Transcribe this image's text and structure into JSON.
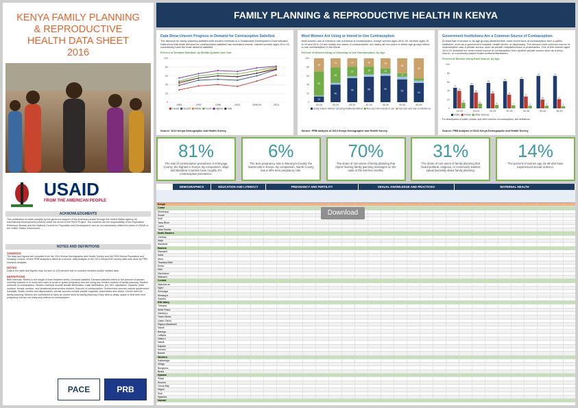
{
  "sidebar": {
    "title": "KENYA FAMILY PLANNING & REPRODUCTIVE HEALTH DATA SHEET 2016",
    "usaid": "USAID",
    "usaid_tagline": "FROM THE AMERICAN PEOPLE",
    "acknowledgments_heading": "ACKNOWLEDGMENTS",
    "acknowledgments_text": "This publication is made possible by the generous support of the American people through the United States Agency for International Development (USAID) under the terms of the PACE Project. The contents are the responsibility of the Population Reference Bureau and the National Council for Population and Development, and do not necessarily reflect the views of USAID or the United States Government.",
    "notes_heading": "NOTES AND DEFINITIONS",
    "sections": [
      {
        "heading": "SOURCES",
        "text": "The data and figures are compiled from the 2014 Kenya Demographic and Health Survey and the 2009 Kenya Population and Housing Census. Where PRB analysis is listed as a source, data analysis of the 2014 Kenya DHS survey data was done by PRB research analysts."
      },
      {
        "heading": "NOTES",
        "text": "Data in the table and figures may not sum to 100 percent due to rounded numbers and/or omitted data."
      },
      {
        "heading": "DEFINITIONS",
        "text": "Birth intervals: Refers to the length of time between births. Demand satisfied: Demand satisfied refers to the percent of women currently married or in union who want to avoid or space pregnancy and are using any modern method of family planning. Modern methods of contraception: Modern methods include female sterilization, male sterilization, pill, IUD, injectables, implants, male condom, female condom, and lactational amenorrhea method. Sources of contraception: Government sources include government hospitals, health centres and dispensaries; private sources include private hospitals, pharmacies and clinics. Unmet need for family planning: Women are considered to have an unmet need for family planning if they wish to delay, space or limit their next pregnancy but are not using any method of contraception."
      }
    ],
    "logos": [
      "PACE",
      "PRB"
    ]
  },
  "header": {
    "title": "FAMILY PLANNING & REPRODUCTIVE HEALTH IN KENYA"
  },
  "panels": [
    {
      "heading": "Data Show Uneven Progress in Demand for Contraceptive Satisfied.",
      "text": "The demand for family planning satisfied with modern methods is a Sustainable Development Goal indicator. Data show that while demand for contraception satisfied has increased overall, married women ages 15 to 19 consistently have the least demand satisfied.",
      "chart_data": {
        "type": "line",
        "title": "Percent of Demand Satisfied, by Wealth Quintile and Year",
        "categories": [
          "1989",
          "1993",
          "1998",
          "2003",
          "2008-09",
          "2014"
        ],
        "series": [
          {
            "name": "Lowest",
            "color": "#d7312e",
            "values": [
              28,
              37,
              40,
              36,
              48,
              62
            ]
          },
          {
            "name": "Second",
            "color": "#2f5597",
            "values": [
              38,
              50,
              52,
              50,
              60,
              74
            ]
          },
          {
            "name": "Middle",
            "color": "#ed7d31",
            "values": [
              42,
              55,
              60,
              58,
              66,
              78
            ]
          },
          {
            "name": "Fourth",
            "color": "#70ad47",
            "values": [
              48,
              60,
              65,
              64,
              72,
              80
            ]
          },
          {
            "name": "Highest",
            "color": "#7030a0",
            "values": [
              55,
              65,
              72,
              70,
              78,
              82
            ]
          },
          {
            "name": "Total",
            "color": "#333333",
            "values": [
              45,
              55,
              60,
              58,
              66,
              75
            ]
          }
        ],
        "ylim": [
          0,
          100
        ],
        "yticks": [
          0,
          20,
          40,
          60,
          80,
          100
        ],
        "grid": true
      },
      "source": "Source: 2014 Kenya Demographic and Health Survey."
    },
    {
      "heading": "Most Women Are Using or Intend to Use Contraception.",
      "text": "Most women use or intend to use a method of contraception, except women ages 45 to 49. Women ages 15 to 19 and 20 to 24 are mostly non-users of contraception, but nearly all non-users in these age groups intend to use contraception in the future.",
      "chart_data": {
        "type": "stacked-bar",
        "title": "Percent of Women Using or Intending to Use Contraception, by Age",
        "categories": [
          "15-19",
          "20-24",
          "25-29",
          "30-34",
          "35-39",
          "40-44",
          "45-49"
        ],
        "series": [
          {
            "name": "Using modern method",
            "color": "#1f3b6e",
            "values": [
              13,
              40,
              55,
              58,
              60,
              52,
              44
            ]
          },
          {
            "name": "Using traditional method",
            "color": "#9dc3e6",
            "values": [
              2,
              4,
              4,
              5,
              5,
              6,
              5
            ]
          },
          {
            "name": "Non-user who intends to use",
            "color": "#70ad47",
            "values": [
              55,
              35,
              22,
              18,
              12,
              8,
              5
            ]
          },
          {
            "name": "Non-user who has no intention to use",
            "color": "#c9a36b",
            "values": [
              30,
              21,
              19,
              19,
              23,
              34,
              46
            ]
          }
        ],
        "ylim": [
          0,
          100
        ],
        "yticks": [
          0,
          20,
          40,
          60,
          80,
          100
        ]
      },
      "source": "Source: PRB analysis of 2014 Kenya Demographic and Health Survey."
    },
    {
      "heading": "Government Institutions Are a Common Source of Contraception.",
      "text": "At least half of women in all age groups obtained their most recent form of contraception from a public institution, such as a government hospital, health center, or dispensary. The second most common source of contraception was a private source, such as private hospitals/clinics or pharmacies. One in five women ages 15 to 19 obtained her most recent source of contraception from another private source such as a shop, church, or community-based health workers/distributors.",
      "chart_data": {
        "type": "grouped-bar",
        "title": "Percent of Women Using Each Source, by Age",
        "categories": [
          "15-19",
          "20-24",
          "25-29",
          "30-34",
          "35-39",
          "40-44",
          "45-49"
        ],
        "series": [
          {
            "name": "Public",
            "color": "#1f3b6e",
            "values": [
              47,
              53,
              58,
              62,
              67,
              74,
              74
            ]
          },
          {
            "name": "Private",
            "color": "#c0392b",
            "values": [
              40,
              36,
              34,
              31,
              27,
              20,
              21
            ]
          },
          {
            "name": "Other Sources",
            "color": "#70ad47",
            "values": [
              13,
              11,
              8,
              7,
              6,
              6,
              5
            ]
          }
        ],
        "ylim": [
          0,
          100
        ],
        "yticks": [
          0,
          20,
          40,
          60,
          80,
          100
        ]
      },
      "note": "For descriptions of public, private, and other sources of contraception, see definitions.",
      "source": "Source: PRB analysis of 2014 Kenya Demographic and Health Survey."
    }
  ],
  "stats": [
    {
      "value": "81%",
      "text": "The rate of contraceptive prevalence in Kirinyaga County, the highest in Kenya. By comparison, Wajir and Mandera Counties have roughly 2% contraceptive prevalence."
    },
    {
      "value": "6%",
      "text": "The teen pregnancy rate in Murang'a County, the lowest rate in Kenya. By comparison, Narok County has a 40% teen pregnancy rate."
    },
    {
      "value": "70%",
      "text": "The share of non-users of family planning that report hearing family planning messages on the radio in the last few months."
    },
    {
      "value": "31%",
      "text": "The share of non-users of family planning that heard political, religious, or community leaders speak favorably about family planning."
    },
    {
      "value": "14%",
      "text": "The percent of women age 15-49 who have experienced sexual violence."
    }
  ],
  "table": {
    "groups": [
      "DEMOGRAPHICS",
      "EDUCATION AND LITERACY",
      "PREGNANCY AND FERTILITY",
      "SEXUAL KNOWLEDGE AND PRACTICES",
      "MATERNAL HEALTH"
    ],
    "national": "Kenya",
    "regions": [
      {
        "name": "Coast",
        "counties": [
          "Mombasa",
          "Kwale",
          "Kilifi",
          "Tana River",
          "Lamu",
          "Taita Taveta"
        ]
      },
      {
        "name": "North Eastern",
        "counties": [
          "Garissa",
          "Wajir",
          "Mandera"
        ]
      },
      {
        "name": "Eastern",
        "counties": [
          "Marsabit",
          "Isiolo",
          "Meru",
          "Tharaka-Nithi",
          "Embu",
          "Kitui",
          "Machakos",
          "Makueni"
        ]
      },
      {
        "name": "Central",
        "counties": [
          "Nyandarua",
          "Nyeri",
          "Kirinyaga",
          "Murang'a",
          "Kiambu"
        ]
      },
      {
        "name": "Rift Valley",
        "counties": [
          "Turkana",
          "West Pokot",
          "Samburu",
          "Trans Nzoia",
          "Uasin Gishu",
          "Elgeyo-Marakwet",
          "Nandi",
          "Baringo",
          "Laikipia",
          "Nakuru",
          "Narok",
          "Kajiado",
          "Kericho",
          "Bomet"
        ]
      },
      {
        "name": "Western",
        "counties": [
          "Kakamega",
          "Vihiga",
          "Bungoma",
          "Busia"
        ]
      },
      {
        "name": "Nyanza",
        "counties": [
          "Siaya",
          "Kisumu",
          "Homa Bay",
          "Migori",
          "Kisii",
          "Nyamira"
        ]
      },
      {
        "name": "Nairobi",
        "counties": []
      }
    ]
  },
  "download": "Download"
}
